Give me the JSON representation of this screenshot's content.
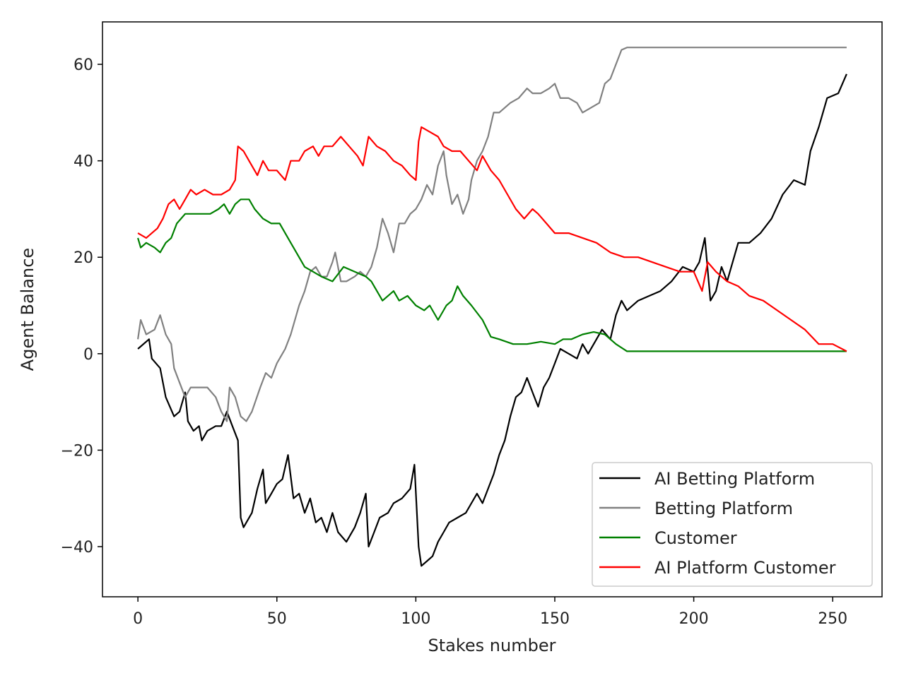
{
  "chart_data": {
    "type": "line",
    "title": "",
    "xlabel": "Stakes number",
    "ylabel": "Agent Balance",
    "xlim": [
      -12.75,
      267.75
    ],
    "ylim": [
      -50.4,
      68.8
    ],
    "xticks": [
      0,
      50,
      100,
      150,
      200,
      250
    ],
    "yticks": [
      -40,
      -20,
      0,
      20,
      40,
      60
    ],
    "grid": false,
    "legend_position": "lower-right",
    "series": [
      {
        "name": "AI Betting Platform",
        "color": "#000000",
        "x": [
          0,
          4,
          5,
          8,
          10,
          13,
          15,
          17,
          18,
          20,
          22,
          23,
          25,
          28,
          30,
          32,
          34,
          36,
          37,
          38,
          41,
          43,
          45,
          46,
          48,
          50,
          52,
          54,
          56,
          58,
          60,
          62,
          64,
          66,
          68,
          70,
          72,
          75,
          78,
          80,
          82,
          83,
          85,
          87,
          90,
          92,
          95,
          98,
          99.5,
          101,
          102,
          104,
          106,
          108,
          110,
          112,
          115,
          118,
          120,
          122,
          124,
          126,
          128,
          130,
          132,
          134,
          136,
          138,
          140,
          142,
          144,
          146,
          148,
          150,
          152,
          155,
          158,
          160,
          162,
          165,
          167,
          170,
          172,
          174,
          176,
          180,
          184,
          188,
          192,
          196,
          200,
          202,
          204,
          206,
          208,
          210,
          212,
          216,
          220,
          224,
          228,
          232,
          236,
          240,
          242,
          245,
          248,
          252,
          255
        ],
        "y": [
          1,
          3,
          -1,
          -3,
          -9,
          -13,
          -12,
          -8,
          -14,
          -16,
          -15,
          -18,
          -16,
          -15,
          -15,
          -12,
          -15,
          -18,
          -34,
          -36,
          -33,
          -28,
          -24,
          -31,
          -29,
          -27,
          -26,
          -21,
          -30,
          -29,
          -33,
          -30,
          -35,
          -34,
          -37,
          -33,
          -37,
          -39,
          -36,
          -33,
          -29,
          -40,
          -37,
          -34,
          -33,
          -31,
          -30,
          -28,
          -23,
          -40,
          -44,
          -43,
          -42,
          -39,
          -37,
          -35,
          -34,
          -33,
          -31,
          -29,
          -31,
          -28,
          -25,
          -21,
          -18,
          -13,
          -9,
          -8,
          -5,
          -8,
          -11,
          -7,
          -5,
          -2,
          1,
          0,
          -1,
          2,
          0,
          3,
          5,
          3,
          8,
          11,
          9,
          11,
          12,
          13,
          15,
          18,
          17,
          19,
          24,
          11,
          13,
          18,
          15,
          23,
          23,
          25,
          28,
          33,
          36,
          35,
          42,
          47,
          53,
          54,
          58
        ]
      },
      {
        "name": "Betting Platform",
        "color": "#808080",
        "x": [
          0,
          1,
          3,
          6,
          8,
          10,
          12,
          13,
          15,
          17,
          19,
          22,
          25,
          28,
          30,
          32,
          33,
          35,
          37,
          39,
          41,
          44,
          46,
          48,
          50,
          53,
          55,
          58,
          60,
          62,
          64,
          66,
          68,
          70,
          71,
          73,
          75,
          78,
          80,
          82,
          84,
          86,
          88,
          90,
          92,
          94,
          96,
          98,
          100,
          102,
          104,
          106,
          108,
          110,
          111,
          113,
          115,
          117,
          119,
          120,
          122,
          124,
          126,
          128,
          130,
          132,
          134,
          137,
          140,
          142,
          145,
          148,
          150,
          152,
          155,
          158,
          160,
          163,
          166,
          168,
          170,
          172,
          174,
          176,
          255
        ],
        "y": [
          3,
          7,
          4,
          5,
          8,
          4,
          2,
          -3,
          -6,
          -9,
          -7,
          -7,
          -7,
          -9,
          -12,
          -14,
          -7,
          -9,
          -13,
          -14,
          -12,
          -7,
          -4,
          -5,
          -2,
          1,
          4,
          10,
          13,
          17,
          18,
          16,
          16,
          19,
          21,
          15,
          15,
          16,
          17,
          16,
          18,
          22,
          28,
          25,
          21,
          27,
          27,
          29,
          30,
          32,
          35,
          33,
          39,
          42,
          37,
          31,
          33,
          29,
          32,
          36,
          40,
          42,
          45,
          50,
          50,
          51,
          52,
          53,
          55,
          54,
          54,
          55,
          56,
          53,
          53,
          52,
          50,
          51,
          52,
          56,
          57,
          60,
          63,
          63.5,
          63.5
        ]
      },
      {
        "name": "Customer",
        "color": "#008000",
        "x": [
          0,
          1,
          3,
          6,
          8,
          10,
          12,
          14,
          17,
          20,
          23,
          26,
          29,
          31,
          33,
          35,
          37,
          40,
          42,
          45,
          48,
          51,
          53,
          55,
          58,
          60,
          63,
          66,
          70,
          74,
          78,
          82,
          84,
          86,
          88,
          90,
          92,
          94,
          97,
          100,
          103,
          105,
          108,
          111,
          113,
          115,
          117,
          120,
          124,
          127,
          130,
          135,
          140,
          145,
          150,
          153,
          156,
          160,
          164,
          168,
          172,
          176,
          255
        ],
        "y": [
          24,
          22,
          23,
          22,
          21,
          23,
          24,
          27,
          29,
          29,
          29,
          29,
          30,
          31,
          29,
          31,
          32,
          32,
          30,
          28,
          27,
          27,
          25,
          23,
          20,
          18,
          17,
          16,
          15,
          18,
          17,
          16,
          15,
          13,
          11,
          12,
          13,
          11,
          12,
          10,
          9,
          10,
          7,
          10,
          11,
          14,
          12,
          10,
          7,
          3.5,
          3,
          2,
          2,
          2.5,
          2,
          3,
          3,
          4,
          4.5,
          4,
          2,
          0.5,
          0.5
        ]
      },
      {
        "name": "AI Platform Customer",
        "color": "#ff0000",
        "x": [
          0,
          3,
          5,
          7,
          9,
          11,
          13,
          15,
          17,
          19,
          21,
          24,
          27,
          30,
          33,
          35,
          36,
          38,
          40,
          43,
          45,
          47,
          50,
          53,
          55,
          58,
          60,
          63,
          65,
          67,
          70,
          73,
          76,
          79,
          81,
          83,
          86,
          89,
          92,
          95,
          98,
          100,
          101,
          102,
          105,
          108,
          110,
          113,
          116,
          119,
          122,
          124,
          127,
          130,
          133,
          136,
          139,
          142,
          144,
          147,
          150,
          155,
          160,
          165,
          170,
          175,
          180,
          185,
          190,
          195,
          200,
          203,
          205,
          208,
          212,
          216,
          220,
          225,
          230,
          235,
          240,
          245,
          250,
          255
        ],
        "y": [
          25,
          24,
          25,
          26,
          28,
          31,
          32,
          30,
          32,
          34,
          33,
          34,
          33,
          33,
          34,
          36,
          43,
          42,
          40,
          37,
          40,
          38,
          38,
          36,
          40,
          40,
          42,
          43,
          41,
          43,
          43,
          45,
          43,
          41,
          39,
          45,
          43,
          42,
          40,
          39,
          37,
          36,
          44,
          47,
          46,
          45,
          43,
          42,
          42,
          40,
          38,
          41,
          38,
          36,
          33,
          30,
          28,
          30,
          29,
          27,
          25,
          25,
          24,
          23,
          21,
          20,
          20,
          19,
          18,
          17,
          17,
          13,
          19,
          17,
          15,
          14,
          12,
          11,
          9,
          7,
          5,
          2,
          2,
          0.5
        ]
      }
    ]
  }
}
